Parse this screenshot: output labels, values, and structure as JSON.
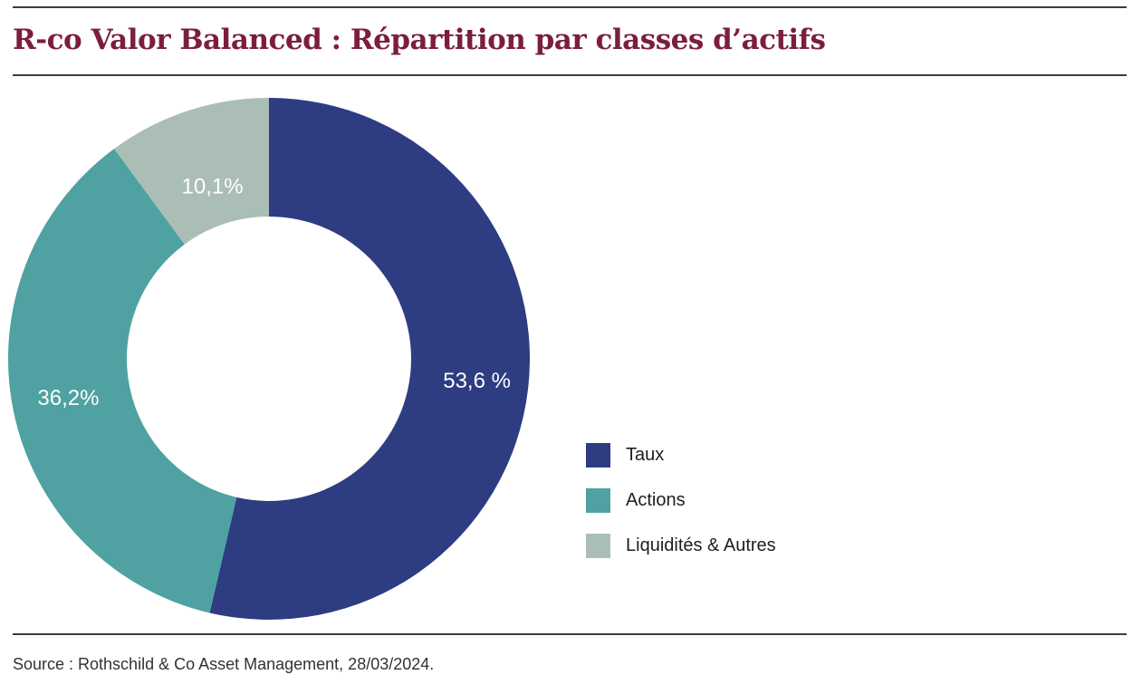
{
  "title": "R-co Valor Balanced : Répartition par classes d’actifs",
  "source": "Source : Rothschild & Co Asset Management, 28/03/2024.",
  "chart_data": {
    "type": "pie",
    "donut": true,
    "legend_position": "right",
    "slices": [
      {
        "name": "Taux",
        "value": 53.6,
        "label": "53,6 %",
        "color": "#2e3c82"
      },
      {
        "name": "Actions",
        "value": 36.2,
        "label": "36,2%",
        "color": "#4fa2a1"
      },
      {
        "name": "Liquidités & Autres",
        "value": 10.1,
        "label": "10,1%",
        "color": "#abbeb6"
      }
    ]
  }
}
